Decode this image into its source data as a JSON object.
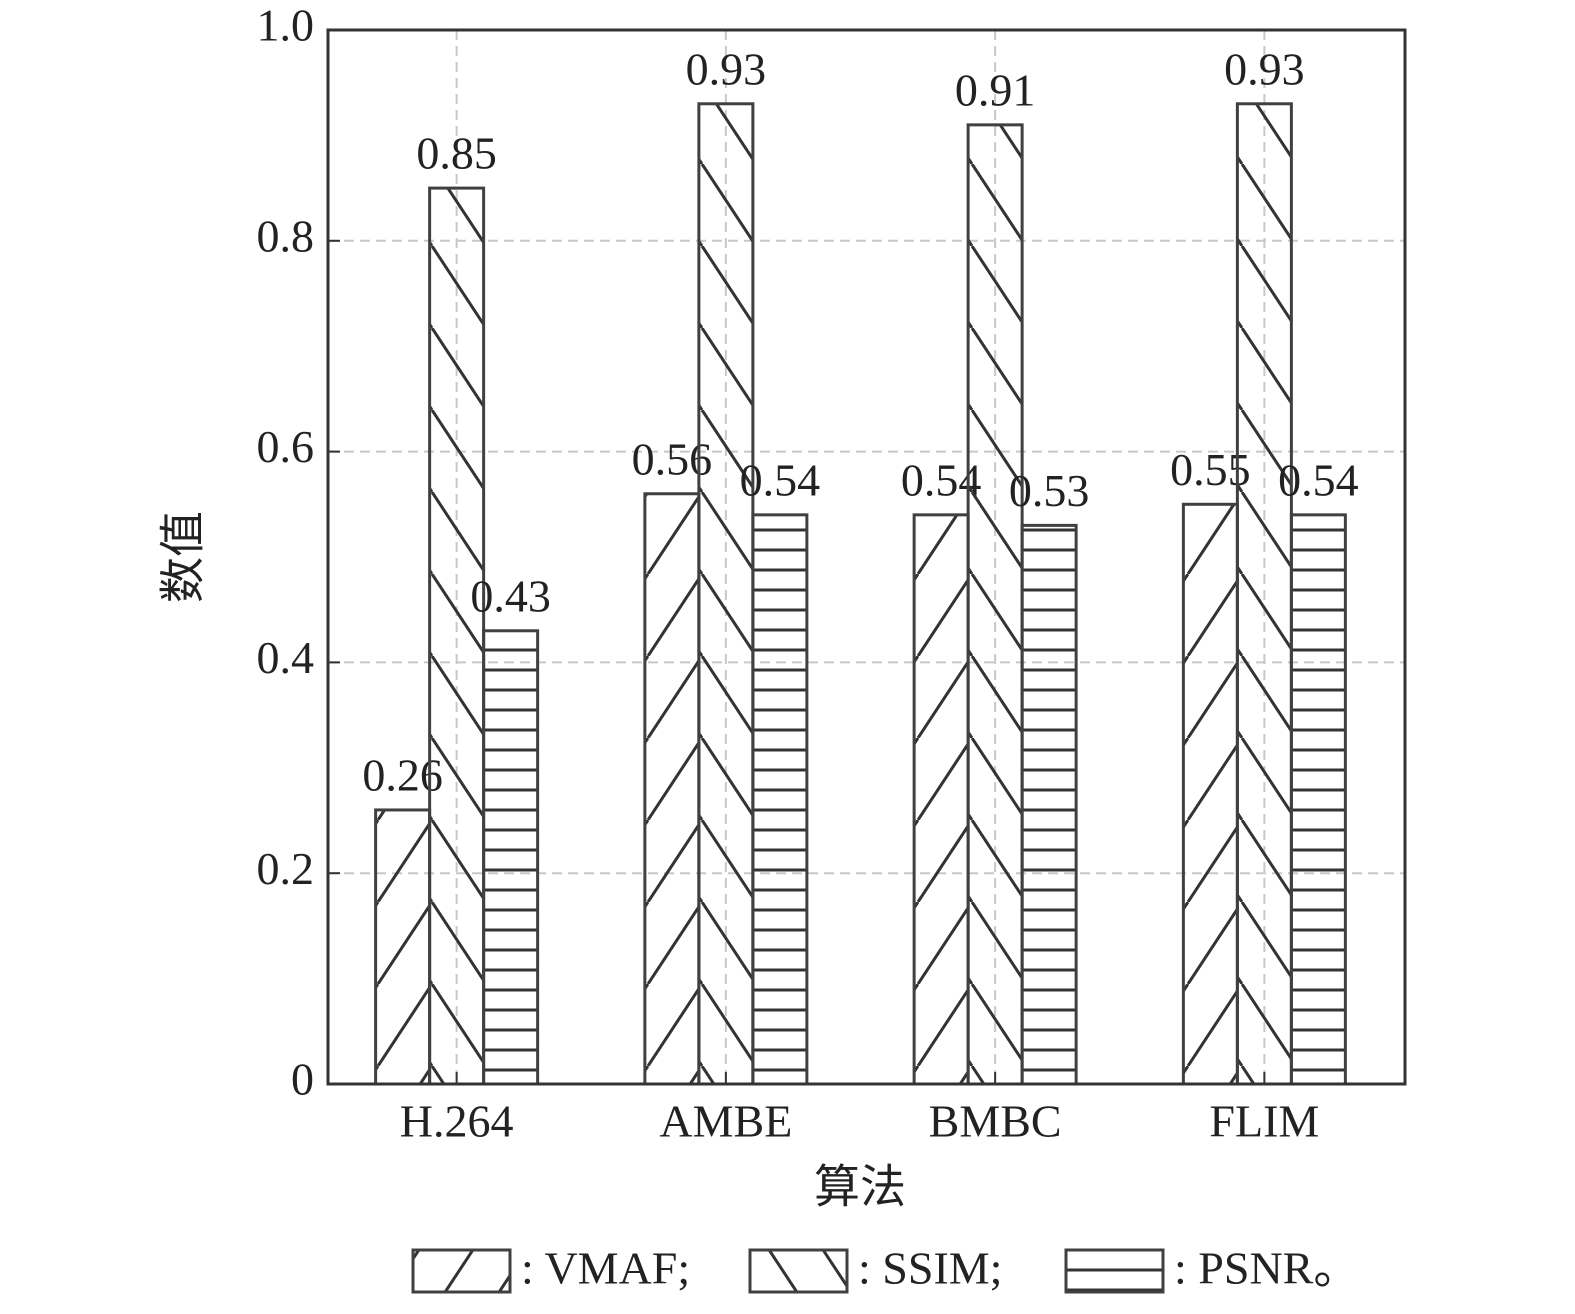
{
  "chart_data": {
    "type": "bar",
    "x_label": "算法",
    "y_label": "数值",
    "categories": [
      "H.264",
      "AMBE",
      "BMBC",
      "FLIM"
    ],
    "series": [
      {
        "name": ": VMAF;",
        "color": "#404040",
        "hatch": "forward",
        "values": [
          0.26,
          0.56,
          0.54,
          0.55
        ]
      },
      {
        "name": ": SSIM;",
        "color": "#404040",
        "hatch": "backward",
        "values": [
          0.85,
          0.93,
          0.91,
          0.93
        ]
      },
      {
        "name": ": PSNR。",
        "color": "#404040",
        "hatch": "horizontal",
        "values": [
          0.43,
          0.54,
          0.53,
          0.54
        ]
      }
    ],
    "ylim": [
      0,
      1
    ],
    "yticks": [
      0,
      0.2,
      0.4,
      0.6,
      0.8,
      {
        "value": 1,
        "label": "1.0"
      }
    ],
    "grid": true
  }
}
